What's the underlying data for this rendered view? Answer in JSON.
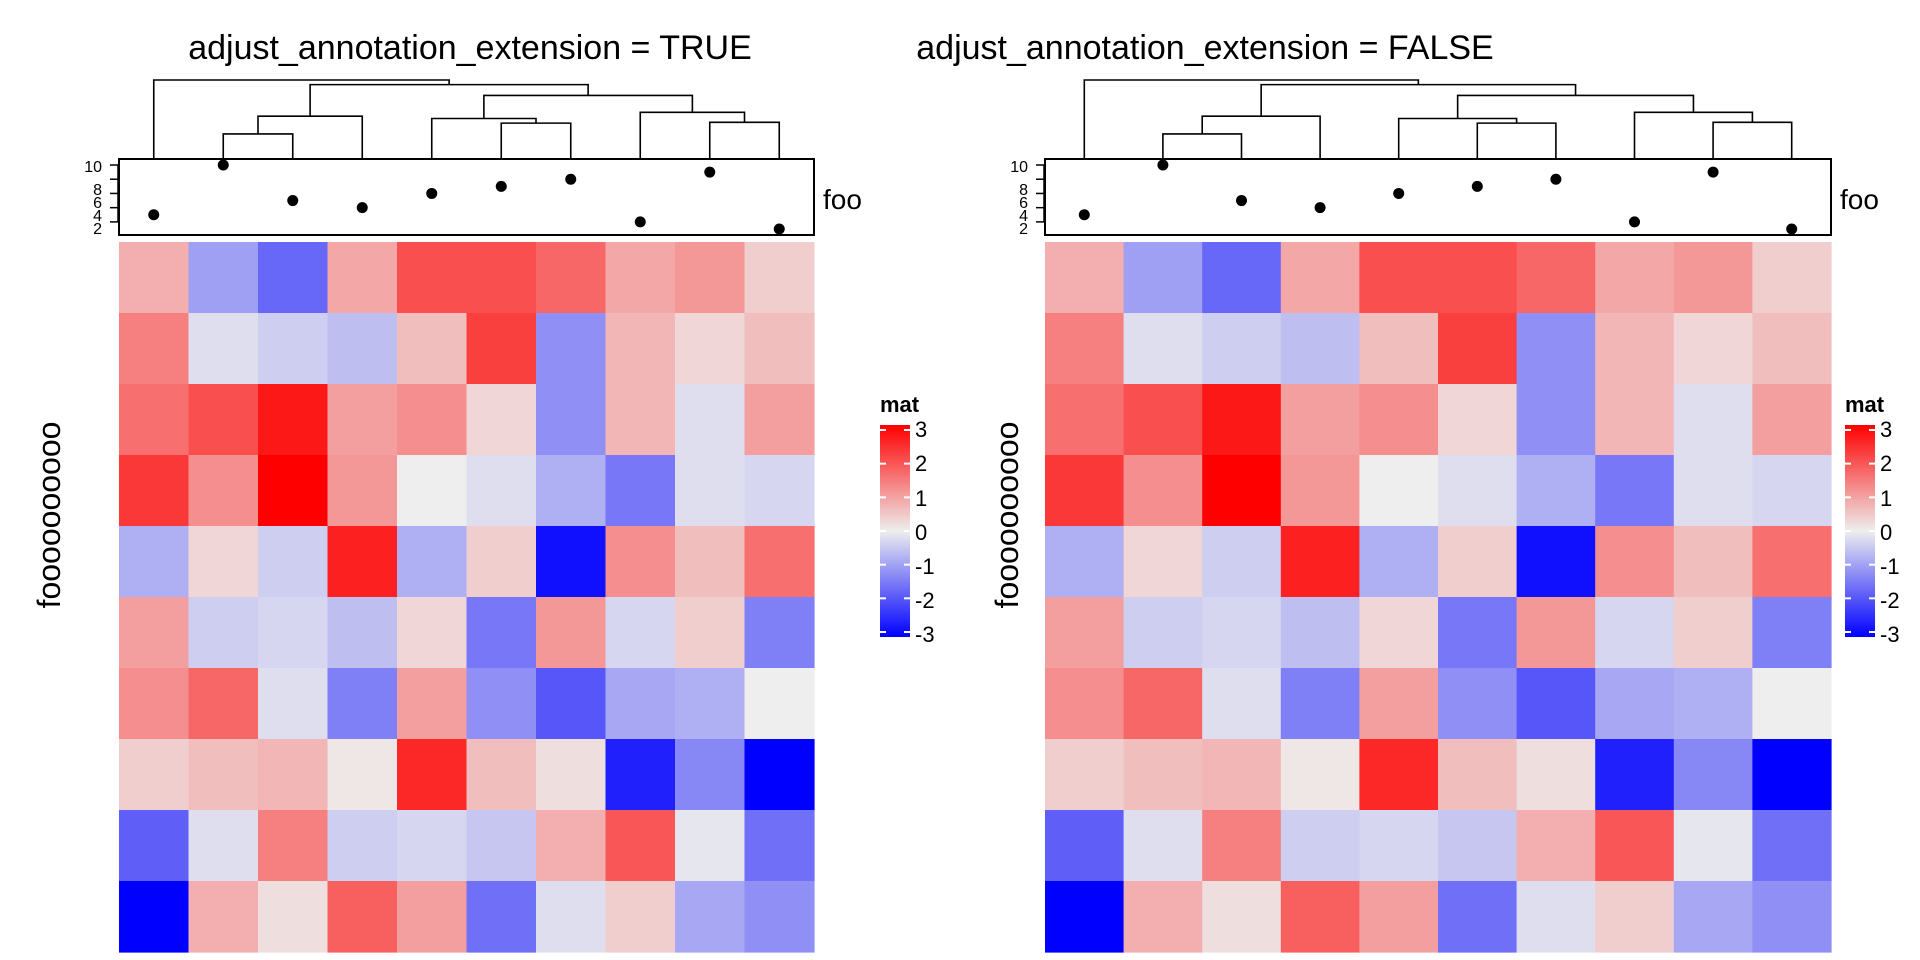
{
  "panels": [
    {
      "title": "adjust_annotation_extension = TRUE",
      "row_title": "foooooooooo",
      "annotation_name": "foo",
      "annotation_ticks": [
        "2",
        "4",
        "6",
        "8",
        "10"
      ],
      "legend_title": "mat",
      "legend_ticks": [
        "3",
        "2",
        "1",
        "0",
        "-1",
        "-2",
        "-3"
      ]
    },
    {
      "title": "adjust_annotation_extension = FALSE",
      "row_title": "foooooooooo",
      "annotation_name": "foo",
      "annotation_ticks": [
        "2",
        "4",
        "6",
        "8",
        "10"
      ],
      "legend_title": "mat",
      "legend_ticks": [
        "3",
        "2",
        "1",
        "0",
        "-1",
        "-2",
        "-3"
      ]
    }
  ],
  "chart_data": {
    "type": "heatmap",
    "note_colors": {
      "low": "#0000ff",
      "mid": "#eeeeee",
      "high": "#ff0000"
    },
    "color_range": [
      -3,
      3
    ],
    "annotation": {
      "name": "foo",
      "type": "scatter",
      "ylim": [
        1,
        10
      ],
      "values": [
        3,
        10,
        5,
        4,
        6,
        7,
        8,
        2,
        9,
        1
      ]
    },
    "column_dendrogram": {
      "note": "column order after clustering; merges as [left_leaf_index_range, right_leaf_index_range, height]",
      "merges": [
        {
          "a": [
            1
          ],
          "b": [
            2
          ],
          "h": 0.3
        },
        {
          "a": [
            5
          ],
          "b": [
            6
          ],
          "h": 0.44
        },
        {
          "a": [
            4
          ],
          "b": [
            5,
            6
          ],
          "h": 0.5
        },
        {
          "a": [
            8
          ],
          "b": [
            9
          ],
          "h": 0.45
        },
        {
          "a": [
            1,
            2
          ],
          "b": [
            3
          ],
          "h": 0.53
        },
        {
          "a": [
            7
          ],
          "b": [
            8,
            9
          ],
          "h": 0.58
        },
        {
          "a": [
            4,
            5,
            6
          ],
          "b": [
            7,
            8,
            9
          ],
          "h": 0.8
        },
        {
          "a": [
            1,
            2,
            3
          ],
          "b": [
            4,
            5,
            6,
            7,
            8,
            9
          ],
          "h": 0.94
        },
        {
          "a": [
            0
          ],
          "b": [
            1,
            2,
            3,
            4,
            5,
            6,
            7,
            8,
            9
          ],
          "h": 1.0
        }
      ]
    },
    "matrix": [
      [
        0.8,
        -1.0,
        -1.7,
        0.9,
        2.0,
        2.0,
        1.7,
        0.9,
        1.1,
        0.4
      ],
      [
        1.4,
        -0.2,
        -0.4,
        -0.6,
        0.6,
        2.2,
        -1.2,
        0.7,
        0.3,
        0.6
      ],
      [
        1.6,
        2.0,
        2.7,
        1.0,
        1.2,
        0.3,
        -1.2,
        0.7,
        -0.2,
        1.0
      ],
      [
        2.3,
        1.2,
        3.0,
        1.1,
        0.0,
        -0.2,
        -0.8,
        -1.5,
        -0.2,
        -0.3
      ],
      [
        -0.8,
        0.3,
        -0.4,
        2.6,
        -0.8,
        0.4,
        -2.8,
        1.2,
        0.6,
        1.6
      ],
      [
        1.0,
        -0.4,
        -0.3,
        -0.6,
        0.3,
        -1.5,
        1.1,
        -0.3,
        0.4,
        -1.4
      ],
      [
        1.2,
        1.7,
        -0.2,
        -1.4,
        1.0,
        -1.2,
        -1.9,
        -0.9,
        -0.8,
        0.0
      ],
      [
        0.4,
        0.6,
        0.7,
        0.1,
        2.5,
        0.6,
        0.2,
        -2.6,
        -1.3,
        -3.0
      ],
      [
        -1.8,
        -0.2,
        1.4,
        -0.4,
        -0.3,
        -0.5,
        0.8,
        1.9,
        -0.1,
        -1.6
      ],
      [
        -3.0,
        0.8,
        0.2,
        1.8,
        1.0,
        -1.6,
        -0.2,
        0.4,
        -0.9,
        -1.2
      ]
    ]
  }
}
